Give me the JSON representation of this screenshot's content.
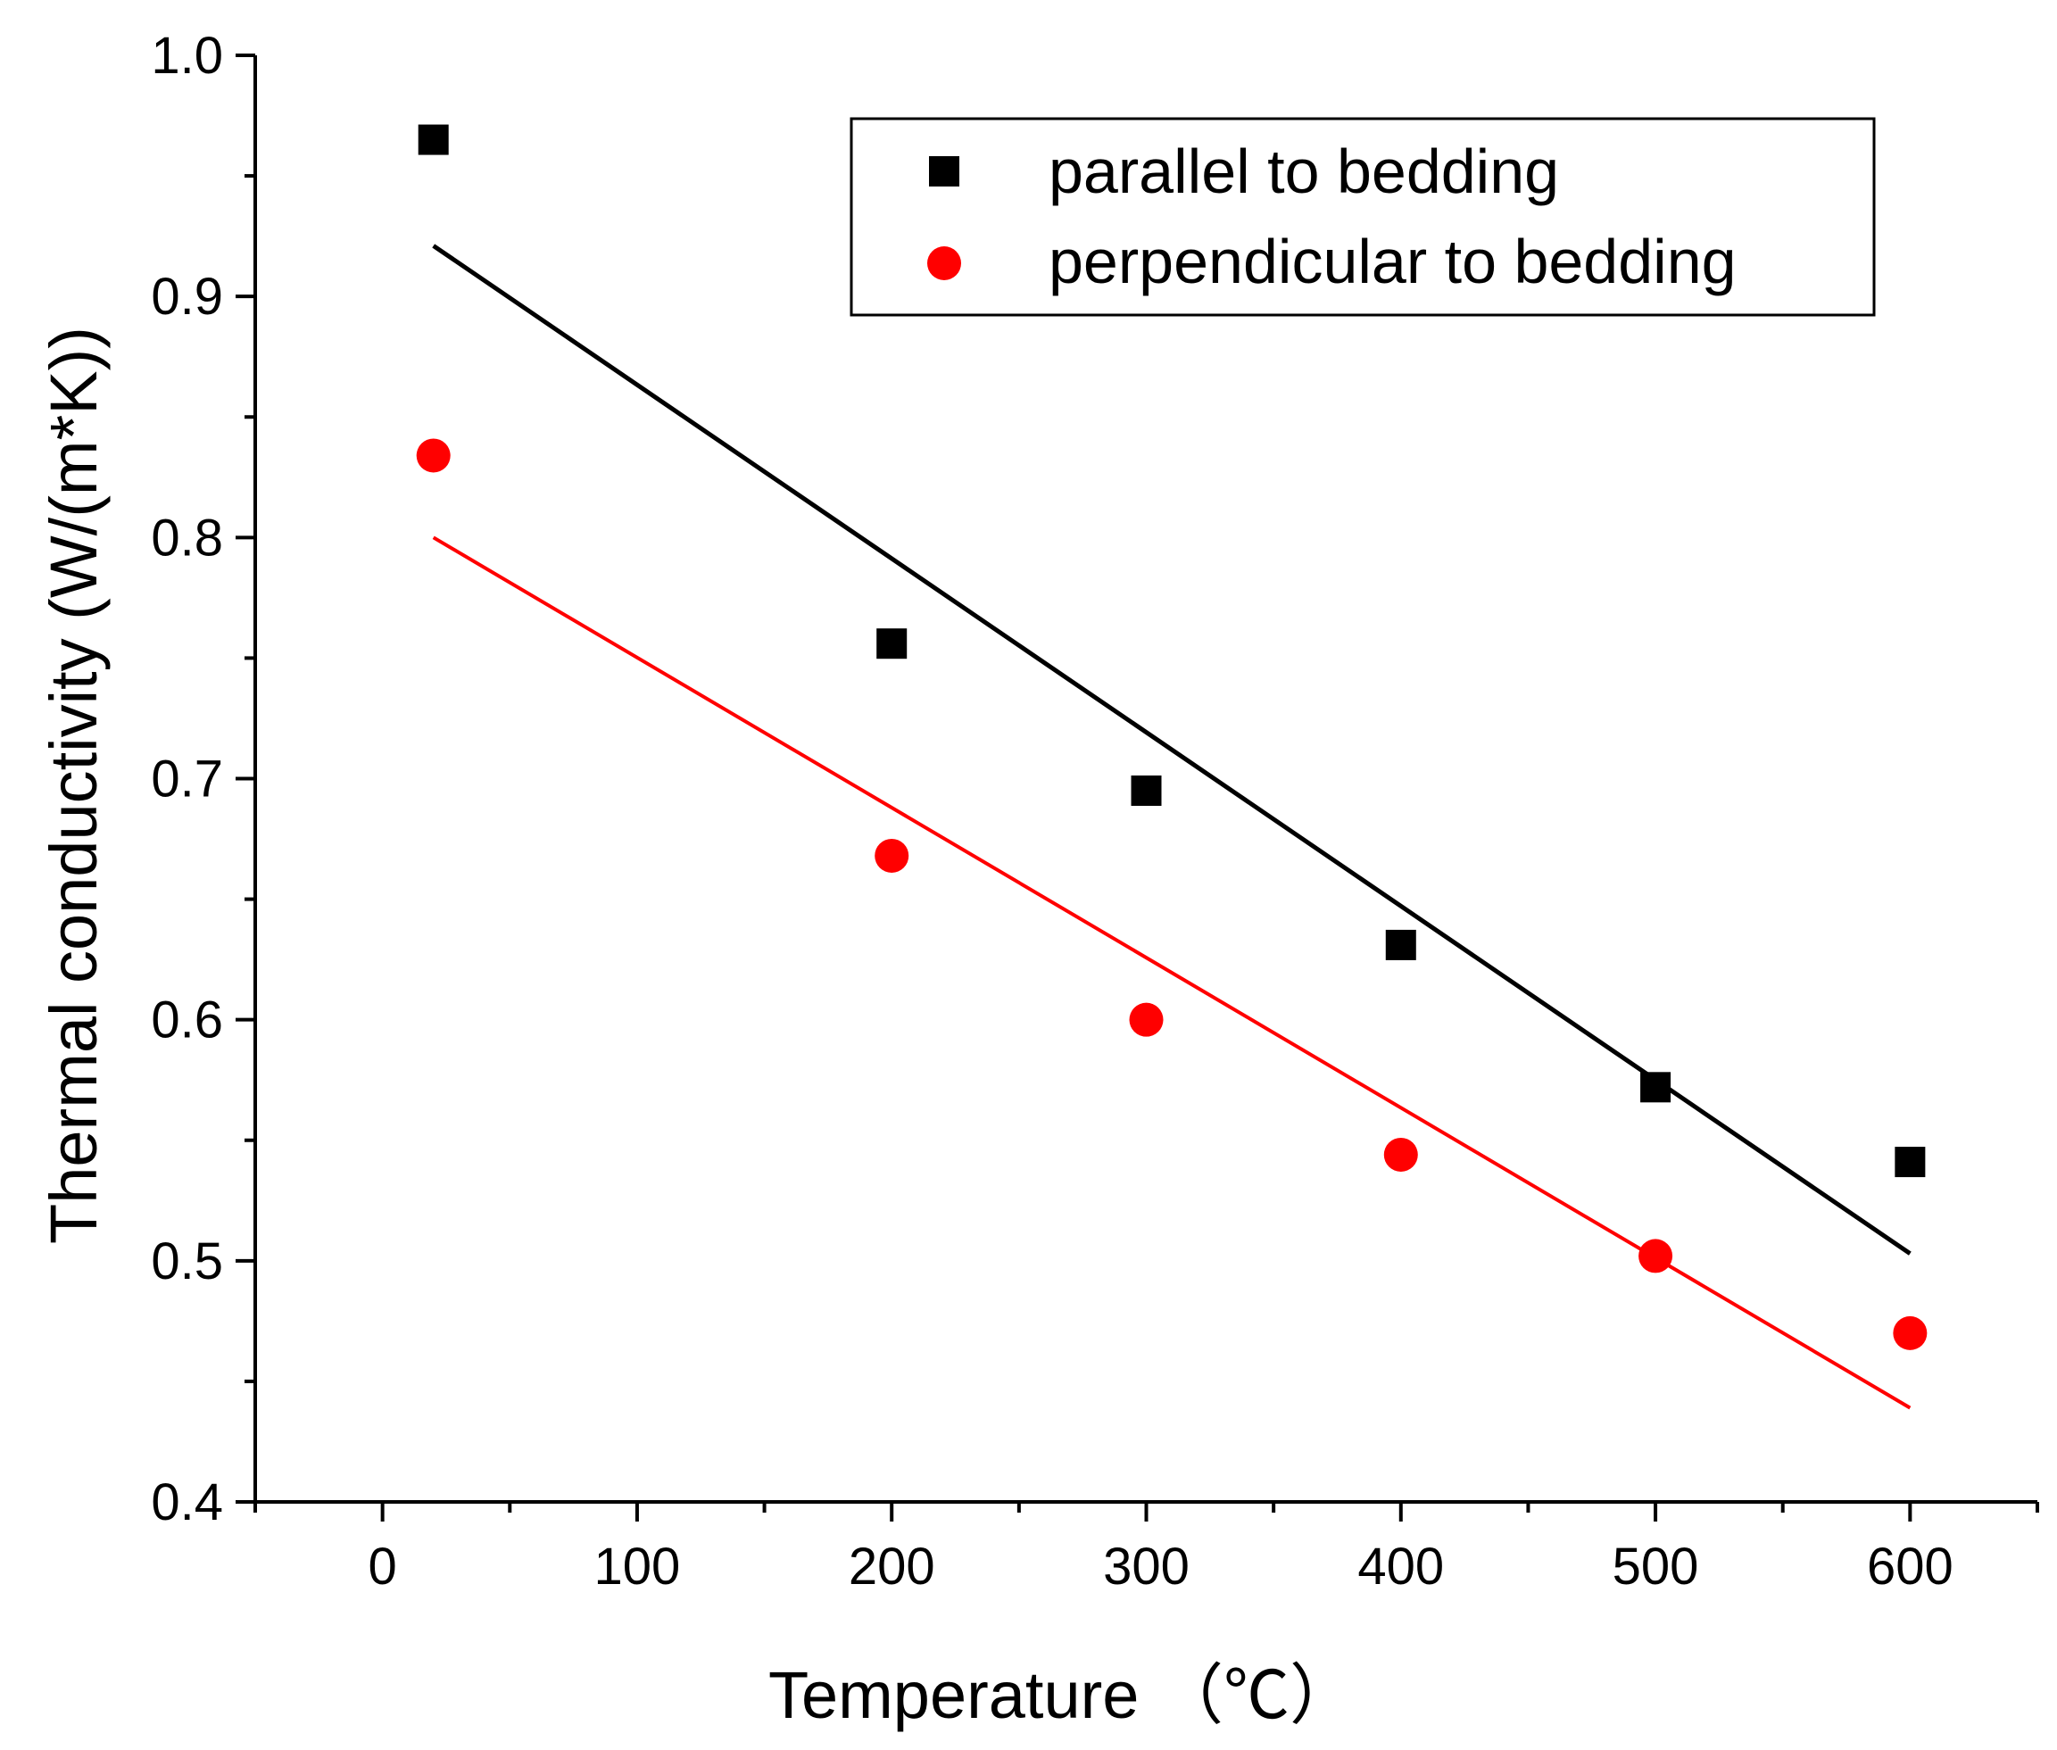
{
  "chart_data": {
    "type": "scatter",
    "title": "",
    "xlabel": "Temperature （℃）",
    "ylabel": "Thermal conductivity (W/(m*K))",
    "xlim": [
      -50,
      650
    ],
    "ylim": [
      0.4,
      1.0
    ],
    "x_ticks": [
      "0",
      "100",
      "200",
      "300",
      "400",
      "500",
      "600"
    ],
    "y_ticks": [
      "0.4",
      "0.5",
      "0.6",
      "0.7",
      "0.8",
      "0.9",
      "1.0"
    ],
    "legend_position": "top-right",
    "series": [
      {
        "name": "parallel to bedding",
        "marker": "square",
        "color": "#000000",
        "x": [
          20,
          200,
          300,
          400,
          500,
          600
        ],
        "y": [
          0.965,
          0.756,
          0.695,
          0.631,
          0.572,
          0.541
        ],
        "fit": {
          "x": [
            20,
            600
          ],
          "y": [
            0.921,
            0.503
          ]
        }
      },
      {
        "name": "perpendicular to bedding",
        "marker": "circle",
        "color": "#ff0000",
        "x": [
          20,
          200,
          300,
          400,
          500,
          600
        ],
        "y": [
          0.834,
          0.668,
          0.6,
          0.544,
          0.502,
          0.47
        ],
        "fit": {
          "x": [
            20,
            600
          ],
          "y": [
            0.8,
            0.439
          ]
        }
      }
    ]
  }
}
